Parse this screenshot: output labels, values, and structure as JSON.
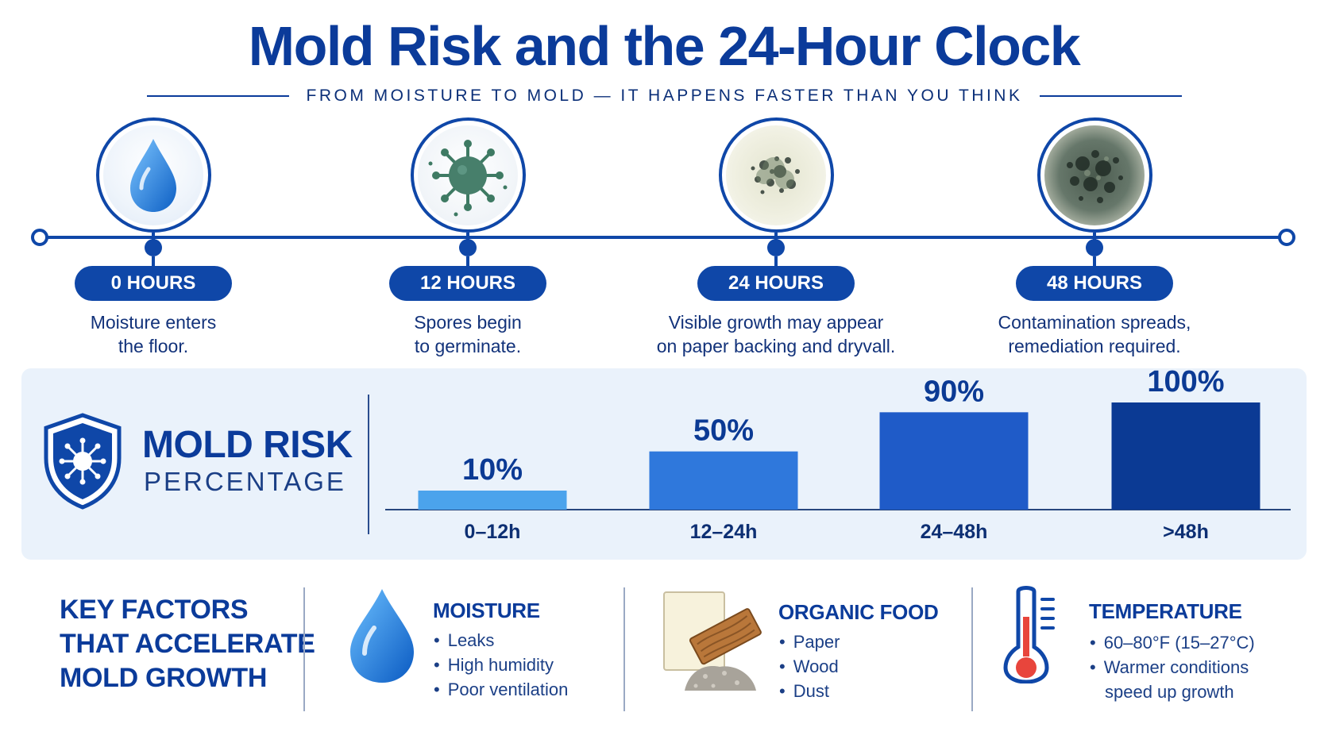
{
  "title": "Mold Risk and the 24-Hour Clock",
  "subtitle": "FROM MOISTURE TO MOLD — IT HAPPENS FASTER THAN YOU THINK",
  "timeline": [
    {
      "label": "0 HOURS",
      "desc_line1": "Moisture enters",
      "desc_line2": "the floor.",
      "icon": "water-drop-icon"
    },
    {
      "label": "12 HOURS",
      "desc_line1": "Spores begin",
      "desc_line2": "to germinate.",
      "icon": "spore-icon"
    },
    {
      "label": "24 HOURS",
      "desc_line1": "Visible growth may appear",
      "desc_line2": "on paper backing and dryvall.",
      "icon": "mold-patch-icon"
    },
    {
      "label": "48 HOURS",
      "desc_line1": "Contamination spreads,",
      "desc_line2": "remediation required.",
      "icon": "heavy-mold-icon"
    }
  ],
  "risk": {
    "title": "MOLD RISK",
    "subtitle": "PERCENTAGE",
    "icon": "shield-virus-icon"
  },
  "chart_data": {
    "type": "bar",
    "categories": [
      "0–12h",
      "12–24h",
      "24–48h",
      ">48h"
    ],
    "values": [
      10,
      50,
      90,
      100
    ],
    "value_labels": [
      "10%",
      "50%",
      "90%",
      "100%"
    ],
    "colors": [
      "#4ba3ec",
      "#2f78dc",
      "#1f5bc8",
      "#0b3a94"
    ],
    "ylim": [
      0,
      100
    ],
    "xlabel": "",
    "ylabel": ""
  },
  "key_factors": {
    "title_line1": "KEY FACTORS",
    "title_line2": "THAT ACCELERATE",
    "title_line3": "MOLD GROWTH",
    "factors": [
      {
        "title": "MOISTURE",
        "icon": "water-drop-icon",
        "items": [
          "Leaks",
          "High humidity",
          "Poor ventilation"
        ]
      },
      {
        "title": "ORGANIC FOOD",
        "icon": "paper-wood-dust-icon",
        "items": [
          "Paper",
          "Wood",
          "Dust"
        ]
      },
      {
        "title": "TEMPERATURE",
        "icon": "thermometer-icon",
        "items": [
          "60–80°F (15–27°C)",
          "Warmer conditions"
        ],
        "continuation": "speed up growth"
      }
    ]
  }
}
